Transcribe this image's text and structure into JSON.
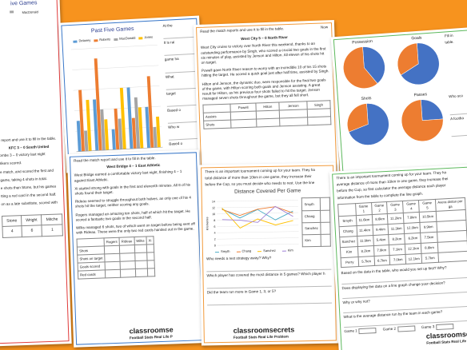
{
  "left": {
    "title": "ive Games",
    "legend": "MacDonald",
    "intro": "t report and use it to fill in the table.",
    "match": "KFC 3 – 0 South United",
    "lines": [
      "ombe 3 – 0 victory last night",
      "rikers scored.",
      "e match, and scored the first and",
      "game, taking 4 shots in total.",
      "e shots than Stone, but his games",
      "tting a red card in the second half.",
      "on as a late substitute, scored with"
    ],
    "table": {
      "header": [
        "Stone",
        "Wright",
        "Mitche"
      ],
      "row": [
        "4",
        "6",
        "1"
      ]
    }
  },
  "past": {
    "title": "Past Five Games",
    "chart": {
      "ylim": [
        0,
        10
      ],
      "series": [
        {
          "name": "Delaney",
          "color": "#5b9bd5",
          "values": [
            3,
            5,
            2,
            6,
            4
          ]
        },
        {
          "name": "Roberts",
          "color": "#ed7d31",
          "values": [
            6,
            9,
            4,
            3,
            7
          ]
        },
        {
          "name": "MacDonald",
          "color": "#a5a5a5",
          "values": [
            2,
            4,
            3,
            5,
            2
          ]
        },
        {
          "name": "Jones",
          "color": "#ffc000",
          "values": [
            5,
            3,
            6,
            4,
            3
          ]
        }
      ]
    },
    "side": [
      "At the",
      "It is rai",
      "game ha",
      "What",
      "target",
      "Based o",
      "Who w",
      "Based o",
      "What"
    ]
  },
  "report": {
    "intro": "Read the match reports and use it to fill in the table.",
    "side": "Now",
    "match": "West City 5 – 0 North River",
    "paragraphs": [
      "West City cruise to victory over North River this weekend, thanks to an outstanding performance by Singh, who scored a crucial two goals in the first six minutes of play, assisted by Jenson and Hilton. All eleven of his shots hit on target.",
      "Powell gave North River reason to worry with an incredible 10 of his 15 shots hitting the target. He scored a quick goal just after half time, assisted by Singh.",
      "Hilton and Jenson, the dynamic duo, were responsible for the final two goals of the game, with Hilton scoring both goals and Jenson assisting. A great result for Hilton, as his previous four shots failed to hit the target. Jenson managed seven shots throughout the game, but they all fell short."
    ],
    "table": {
      "header": [
        "Powell",
        "Hilton",
        "Jenson",
        "Singh"
      ],
      "rows": [
        "Assists",
        "Shots"
      ]
    }
  },
  "pies": {
    "side": [
      "Fill in",
      "table."
    ],
    "charts": [
      {
        "label": "Possession",
        "colors": [
          "#4472c4",
          "#ed7d31"
        ],
        "values": [
          40,
          60
        ]
      },
      {
        "label": "Goals",
        "colors": [
          "#4472c4",
          "#ed7d31"
        ],
        "values": [
          67,
          33
        ]
      },
      {
        "label": "Shots",
        "colors": [
          "#4472c4",
          "#ed7d31"
        ],
        "values": [
          70,
          30
        ]
      },
      {
        "label": "Passes",
        "colors": [
          "#4472c4",
          "#ed7d31"
        ],
        "values": [
          25,
          75
        ]
      }
    ],
    "questions": [
      "Who sco",
      "A footba"
    ]
  },
  "bridge": {
    "intro": "Read the match report and use it to fill in the table.",
    "match": "West Bridge 4 – 1 East Athletic",
    "paragraphs": [
      "West Bridge earned a comfortable victory last night, finishing 4 – 1 against East Athletic.",
      "Xi started strong with goals in the first and eleventh minutes. All 8 of his shots found their target.",
      "Rideau seemed to struggle throughout both halves, as only one of his 4 shots hit the target, neither scoring any goals.",
      "Rogers managed an amazing ten shots, half of which hit the target. He scored a fantastic two goals in the second half.",
      "Wilks managed 6 shots, two of which went on target before being sent off with Rideau. These were the only two red cards handed out in the game."
    ],
    "table": {
      "header": [
        "Rogers",
        "Rideau",
        "Wilks",
        "Xi"
      ],
      "rows": [
        "Shots",
        "Shots on target",
        "Goals scored",
        "Red cards"
      ]
    },
    "footer": [
      "classroomse",
      "Football Stats Real Life P"
    ]
  },
  "distance": {
    "intro": [
      "There is an important tournament coming up for your team. They ha",
      "total distance of more than 10km in one game, they increase their",
      "before the Cup, so you must decide who needs to rest. Use the line"
    ],
    "chart": {
      "title": "Distance Covered Per Game",
      "ylabel": "Kilometres",
      "ylim": [
        0,
        14
      ],
      "yticks": [
        0,
        2,
        4,
        6,
        8,
        10,
        12,
        14
      ],
      "series": [
        {
          "name": "Smyth",
          "color": "#4bacc6",
          "values": [
            11.6,
            8.6,
            11.2,
            7.8,
            10.5
          ]
        },
        {
          "name": "Chang",
          "color": "#ed7d31",
          "values": [
            11.4,
            9.4,
            11.3,
            12.0,
            9.9
          ]
        },
        {
          "name": "Sanchez",
          "color": "#ffc000",
          "values": [
            11.9,
            5.4,
            8.2,
            6.2,
            7.5
          ]
        },
        {
          "name": "Kim",
          "color": "#9e7fd6",
          "values": [
            8.2,
            7.9,
            7.1,
            12.1,
            8.8
          ]
        }
      ]
    },
    "names": [
      "Smyth",
      "Chang",
      "Sanchez",
      "Kim"
    ],
    "questions": [
      "Who needs a rest strategy away? Why?",
      "Which player has covered the most distance in 5 games? Which player h",
      "Did the team run more in Game 1, 3, or 5?"
    ],
    "footer": [
      "classroomsecrets",
      "Football Stats Real Life Problem"
    ]
  },
  "front": {
    "intro": [
      "There is an important tournament coming up for your team. They ha",
      "average distance of more than 10km in one game, they increase thei",
      "before the Cup, so first calculator the average distance each player",
      "information from the table to complete the line graph."
    ],
    "table": {
      "header": [
        "Game 1",
        "Game 2",
        "Game 3",
        "Game 4",
        "Game 5",
        "Avera distan per ga"
      ],
      "rows": [
        [
          "Smyth",
          "11.6km",
          "8.6km",
          "11.2km",
          "7.8km",
          "10.5km"
        ],
        [
          "Chang",
          "11.4km",
          "9.4km",
          "11.3km",
          "12.0km",
          "9.9km"
        ],
        [
          "Sanchez",
          "11.9km",
          "5.4km",
          "8.2km",
          "6.2km",
          "7.5km"
        ],
        [
          "Kim",
          "8.2km",
          "7.9km",
          "7.1km",
          "12.1km",
          "8.8km"
        ],
        [
          "Perry",
          "5.7km",
          "6.7km",
          "7.0km",
          "12.1km",
          "5.7km"
        ]
      ]
    },
    "questions": [
      "Based on the data in the table, who would you set up first? Why?",
      "Does displaying the data on a line graph change your decision?",
      "Why or why not?",
      "What is the average distance run by the team in each game?"
    ],
    "games": [
      "Game 1",
      "Game 2",
      "Game 3"
    ],
    "footer": [
      "classroomse",
      "Football Stats Real Life P"
    ]
  }
}
